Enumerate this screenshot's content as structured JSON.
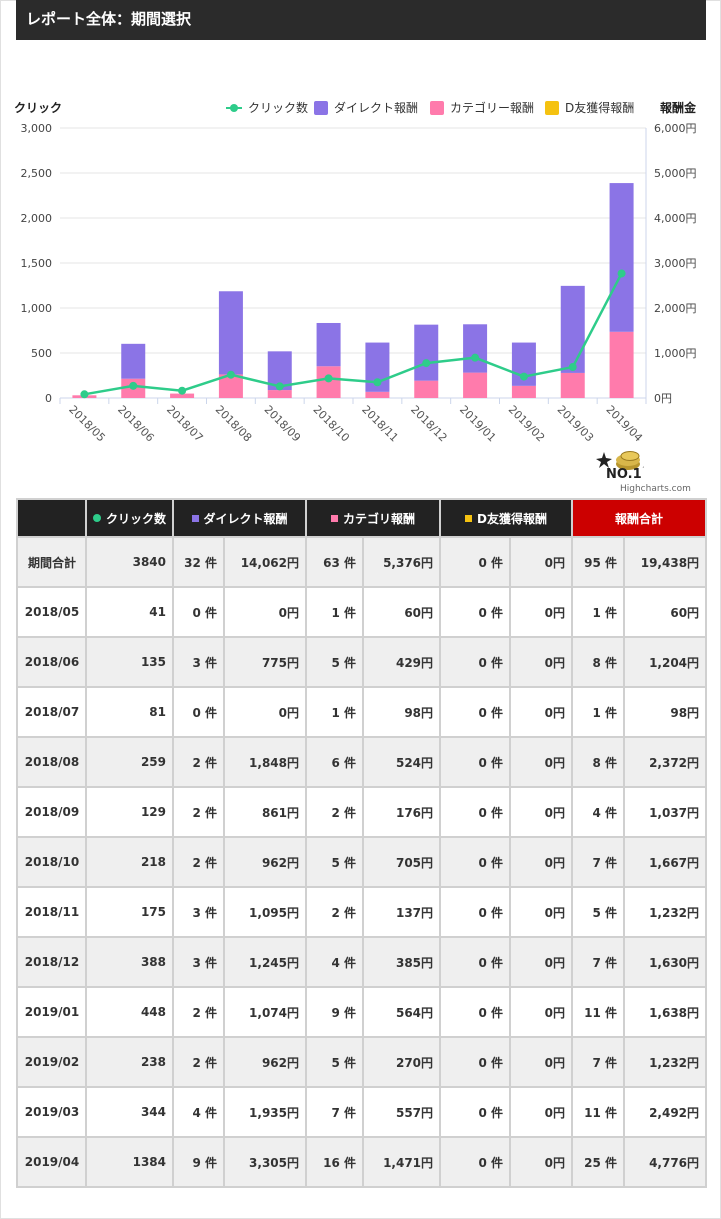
{
  "header": {
    "title": "レポート全体：期間選択"
  },
  "colors": {
    "click": "#2ecc8a",
    "direct": "#8b74e6",
    "category": "#ff7bac",
    "dfriend": "#f5c211",
    "total_header": "#cc0000",
    "header_bg": "#222222"
  },
  "chart_data": {
    "type": "bar",
    "stacked": true,
    "categories": [
      "2018/05",
      "2018/06",
      "2018/07",
      "2018/08",
      "2018/09",
      "2018/10",
      "2018/11",
      "2018/12",
      "2019/01",
      "2019/02",
      "2019/03",
      "2019/04"
    ],
    "y_left": {
      "title": "クリック",
      "min": 0,
      "max": 3000,
      "ticks": [
        "0",
        "500",
        "1,000",
        "1,500",
        "2,000",
        "2,500",
        "3,000"
      ]
    },
    "y_right": {
      "title": "報酬金",
      "min": 0,
      "max": 6000,
      "ticks": [
        "0円",
        "1,000円",
        "2,000円",
        "3,000円",
        "4,000円",
        "5,000円",
        "6,000円"
      ]
    },
    "series": [
      {
        "name": "クリック数",
        "type": "line",
        "axis": "left",
        "values": [
          41,
          135,
          81,
          259,
          129,
          218,
          175,
          388,
          448,
          238,
          344,
          1384
        ]
      },
      {
        "name": "ダイレクト報酬",
        "type": "bar",
        "axis": "right",
        "values": [
          0,
          775,
          0,
          1848,
          861,
          962,
          1095,
          1245,
          1074,
          962,
          1935,
          3305
        ]
      },
      {
        "name": "カテゴリー報酬",
        "type": "bar",
        "axis": "right",
        "values": [
          60,
          429,
          98,
          524,
          176,
          705,
          137,
          385,
          564,
          270,
          557,
          1471
        ]
      },
      {
        "name": "D友獲得報酬",
        "type": "bar",
        "axis": "right",
        "values": [
          0,
          0,
          0,
          0,
          0,
          0,
          0,
          0,
          0,
          0,
          0,
          0
        ]
      }
    ],
    "grid": true,
    "legend": "top-right"
  },
  "credits": {
    "badge": "NO.1",
    "site": "Highcharts.com"
  },
  "table": {
    "headers": {
      "clicks": "クリック数",
      "direct": "ダイレクト報酬",
      "category": "カテゴリ報酬",
      "dfriend": "D友獲得報酬",
      "total": "報酬合計"
    },
    "rows": [
      {
        "label": "期間合計",
        "clicks": "3840",
        "direct_count": "32 件",
        "direct_amount": "14,062円",
        "category_count": "63 件",
        "category_amount": "5,376円",
        "dfriend_count": "0 件",
        "dfriend_amount": "0円",
        "total_count": "95 件",
        "total_amount": "19,438円"
      },
      {
        "label": "2018/05",
        "clicks": "41",
        "direct_count": "0 件",
        "direct_amount": "0円",
        "category_count": "1 件",
        "category_amount": "60円",
        "dfriend_count": "0 件",
        "dfriend_amount": "0円",
        "total_count": "1 件",
        "total_amount": "60円"
      },
      {
        "label": "2018/06",
        "clicks": "135",
        "direct_count": "3 件",
        "direct_amount": "775円",
        "category_count": "5 件",
        "category_amount": "429円",
        "dfriend_count": "0 件",
        "dfriend_amount": "0円",
        "total_count": "8 件",
        "total_amount": "1,204円"
      },
      {
        "label": "2018/07",
        "clicks": "81",
        "direct_count": "0 件",
        "direct_amount": "0円",
        "category_count": "1 件",
        "category_amount": "98円",
        "dfriend_count": "0 件",
        "dfriend_amount": "0円",
        "total_count": "1 件",
        "total_amount": "98円"
      },
      {
        "label": "2018/08",
        "clicks": "259",
        "direct_count": "2 件",
        "direct_amount": "1,848円",
        "category_count": "6 件",
        "category_amount": "524円",
        "dfriend_count": "0 件",
        "dfriend_amount": "0円",
        "total_count": "8 件",
        "total_amount": "2,372円"
      },
      {
        "label": "2018/09",
        "clicks": "129",
        "direct_count": "2 件",
        "direct_amount": "861円",
        "category_count": "2 件",
        "category_amount": "176円",
        "dfriend_count": "0 件",
        "dfriend_amount": "0円",
        "total_count": "4 件",
        "total_amount": "1,037円"
      },
      {
        "label": "2018/10",
        "clicks": "218",
        "direct_count": "2 件",
        "direct_amount": "962円",
        "category_count": "5 件",
        "category_amount": "705円",
        "dfriend_count": "0 件",
        "dfriend_amount": "0円",
        "total_count": "7 件",
        "total_amount": "1,667円"
      },
      {
        "label": "2018/11",
        "clicks": "175",
        "direct_count": "3 件",
        "direct_amount": "1,095円",
        "category_count": "2 件",
        "category_amount": "137円",
        "dfriend_count": "0 件",
        "dfriend_amount": "0円",
        "total_count": "5 件",
        "total_amount": "1,232円"
      },
      {
        "label": "2018/12",
        "clicks": "388",
        "direct_count": "3 件",
        "direct_amount": "1,245円",
        "category_count": "4 件",
        "category_amount": "385円",
        "dfriend_count": "0 件",
        "dfriend_amount": "0円",
        "total_count": "7 件",
        "total_amount": "1,630円"
      },
      {
        "label": "2019/01",
        "clicks": "448",
        "direct_count": "2 件",
        "direct_amount": "1,074円",
        "category_count": "9 件",
        "category_amount": "564円",
        "dfriend_count": "0 件",
        "dfriend_amount": "0円",
        "total_count": "11 件",
        "total_amount": "1,638円"
      },
      {
        "label": "2019/02",
        "clicks": "238",
        "direct_count": "2 件",
        "direct_amount": "962円",
        "category_count": "5 件",
        "category_amount": "270円",
        "dfriend_count": "0 件",
        "dfriend_amount": "0円",
        "total_count": "7 件",
        "total_amount": "1,232円"
      },
      {
        "label": "2019/03",
        "clicks": "344",
        "direct_count": "4 件",
        "direct_amount": "1,935円",
        "category_count": "7 件",
        "category_amount": "557円",
        "dfriend_count": "0 件",
        "dfriend_amount": "0円",
        "total_count": "11 件",
        "total_amount": "2,492円"
      },
      {
        "label": "2019/04",
        "clicks": "1384",
        "direct_count": "9 件",
        "direct_amount": "3,305円",
        "category_count": "16 件",
        "category_amount": "1,471円",
        "dfriend_count": "0 件",
        "dfriend_amount": "0円",
        "total_count": "25 件",
        "total_amount": "4,776円"
      }
    ]
  }
}
